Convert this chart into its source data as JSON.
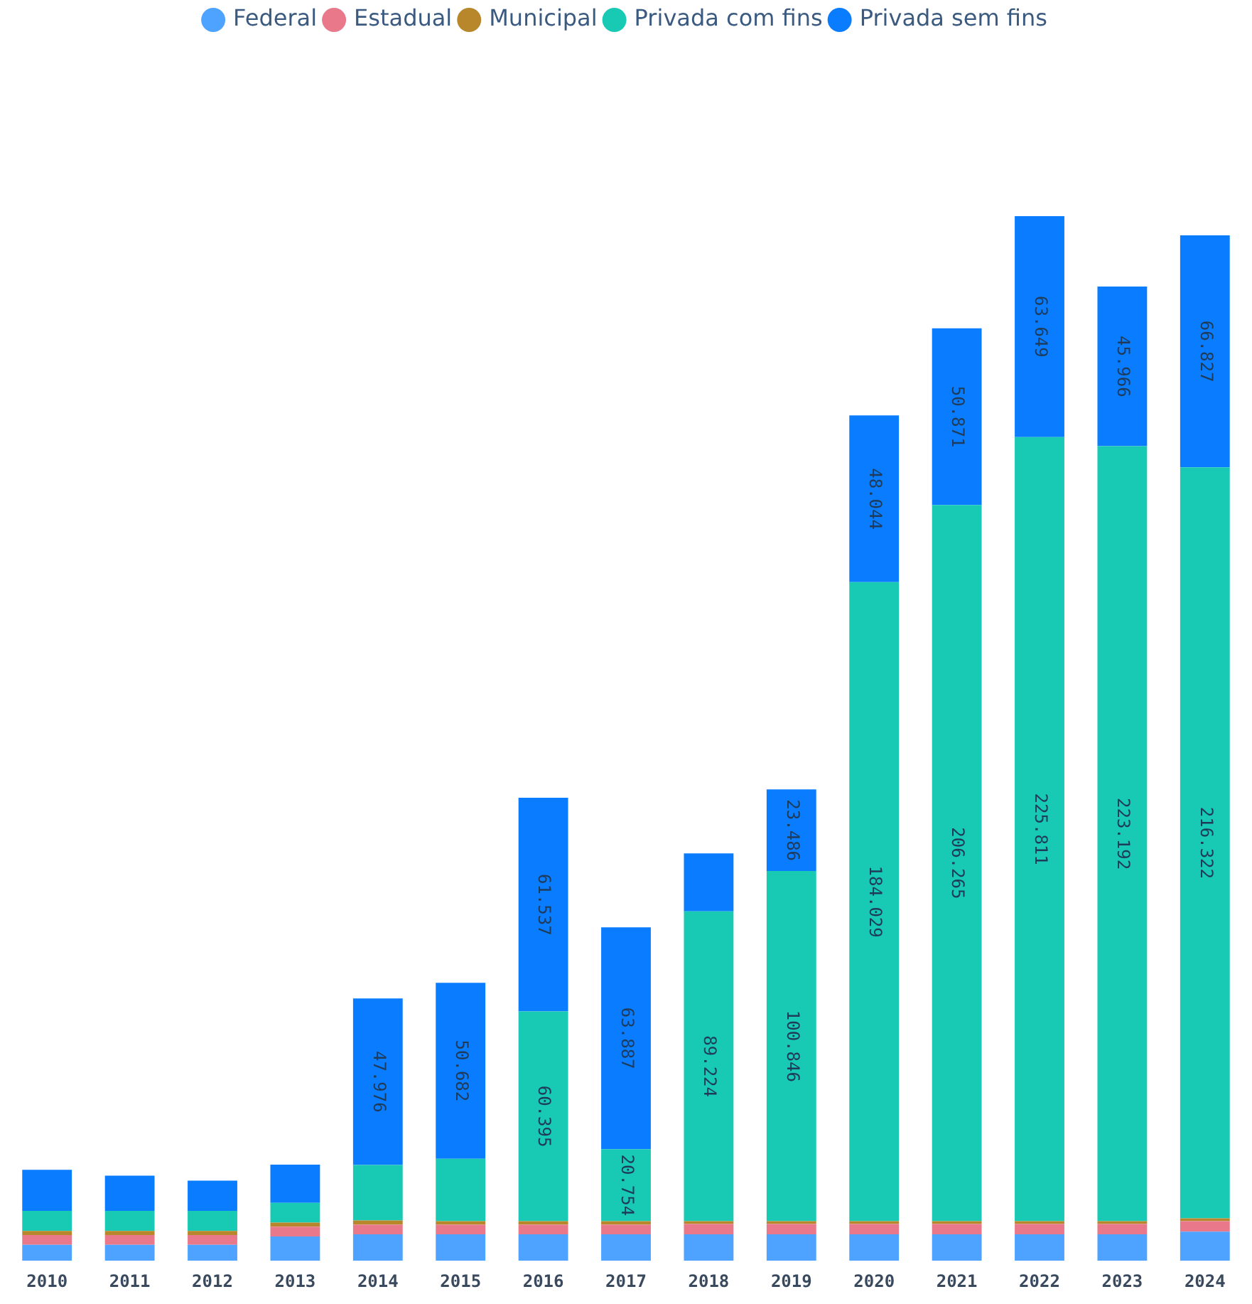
{
  "chart_data": {
    "type": "bar",
    "stacked": true,
    "legend": "top",
    "grid": false,
    "tick_labels": "x",
    "categories": [
      "2010",
      "2011",
      "2012",
      "2013",
      "2014",
      "2015",
      "2016",
      "2017",
      "2018",
      "2019",
      "2020",
      "2021",
      "2022",
      "2023",
      "2024"
    ],
    "series": [
      {
        "name": "Federal",
        "color": "#4da3ff",
        "values": [
          4600,
          4600,
          4600,
          7000,
          7600,
          7600,
          7600,
          7600,
          7600,
          7600,
          7600,
          7600,
          7600,
          7600,
          8400
        ]
      },
      {
        "name": "Estadual",
        "color": "#e8788a",
        "values": [
          2800,
          2800,
          2800,
          2800,
          2800,
          2800,
          2800,
          2800,
          3000,
          3000,
          3000,
          3000,
          3000,
          3000,
          3000
        ]
      },
      {
        "name": "Municipal",
        "color": "#b8862b",
        "values": [
          1200,
          1200,
          1200,
          1200,
          1200,
          1000,
          1000,
          1000,
          800,
          800,
          800,
          800,
          800,
          800,
          800
        ]
      },
      {
        "name": "Privada com fins",
        "color": "#18c9b4",
        "values": [
          5800,
          5800,
          5800,
          5700,
          16000,
          18000,
          60395,
          20754,
          89224,
          100846,
          184029,
          206265,
          225811,
          223192,
          216322
        ],
        "value_labels": [
          null,
          null,
          null,
          null,
          null,
          null,
          "60.395",
          "20.754",
          "89.224",
          "100.846",
          "184.029",
          "206.265",
          "225.811",
          "223.192",
          "216.322"
        ]
      },
      {
        "name": "Privada sem fins",
        "color": "#0a7cff",
        "values": [
          11800,
          10100,
          8700,
          11000,
          47976,
          50682,
          61537,
          63887,
          16700,
          23486,
          48044,
          50871,
          63649,
          45966,
          66827
        ],
        "value_labels": [
          null,
          null,
          null,
          null,
          "47.976",
          "50.682",
          "61.537",
          "63.887",
          null,
          "23.486",
          "48.044",
          "50.871",
          "63.649",
          "45.966",
          "66.827"
        ]
      }
    ]
  }
}
